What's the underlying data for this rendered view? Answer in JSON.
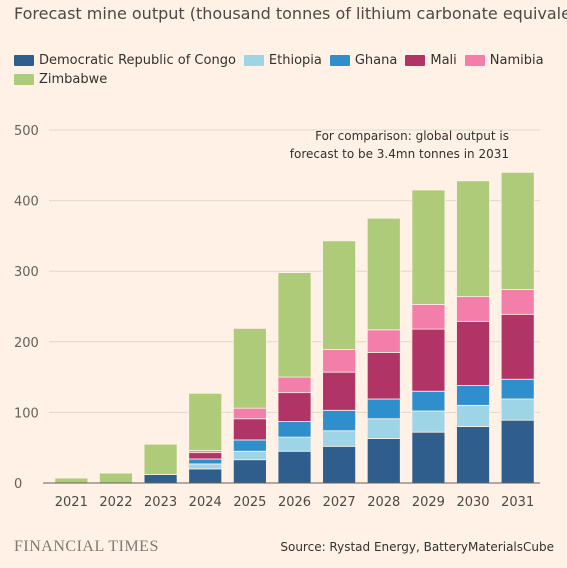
{
  "title": "Forecast mine output (thousand tonnes of lithium carbonate equivalent)",
  "source": "Source: Rystad Energy, BatteryMaterialsCube",
  "logo": "FINANCIAL TIMES",
  "colors": {
    "background": "#fff1e5",
    "gridline": "#e3d6cb",
    "axis": "#66605c"
  },
  "chart_data": {
    "type": "bar",
    "stacked": true,
    "title": "Forecast mine output (thousand tonnes of lithium carbonate equivalent)",
    "xlabel": "",
    "ylabel": "",
    "categories": [
      "2021",
      "2022",
      "2023",
      "2024",
      "2025",
      "2026",
      "2027",
      "2028",
      "2029",
      "2030",
      "2031"
    ],
    "ylim": [
      0,
      500
    ],
    "yticks": [
      0,
      100,
      200,
      300,
      400,
      500
    ],
    "grid": true,
    "legend_position": "top",
    "annotation": {
      "lines": [
        "For comparison: global output is",
        "forecast to be 3.4mn tonnes in 2031"
      ]
    },
    "series": [
      {
        "name": "Democratic Republic of Congo",
        "color": "#2f5d8c",
        "values": [
          0,
          0,
          12,
          20,
          33,
          45,
          52,
          63,
          72,
          80,
          89
        ]
      },
      {
        "name": "Ethiopia",
        "color": "#9dd4e6",
        "values": [
          0,
          0,
          0,
          7,
          12,
          20,
          22,
          28,
          30,
          30,
          30
        ]
      },
      {
        "name": "Ghana",
        "color": "#2f8fcc",
        "values": [
          0,
          0,
          0,
          7,
          16,
          22,
          29,
          28,
          28,
          28,
          28
        ]
      },
      {
        "name": "Mali",
        "color": "#b03465",
        "values": [
          0,
          0,
          0,
          9,
          30,
          41,
          54,
          66,
          88,
          91,
          92
        ]
      },
      {
        "name": "Namibia",
        "color": "#f27ea9",
        "values": [
          0,
          0,
          0,
          3,
          15,
          22,
          32,
          32,
          35,
          35,
          35
        ]
      },
      {
        "name": "Zimbabwe",
        "color": "#adcb78",
        "values": [
          7,
          14,
          43,
          81,
          113,
          148,
          154,
          158,
          162,
          164,
          166
        ]
      }
    ]
  }
}
